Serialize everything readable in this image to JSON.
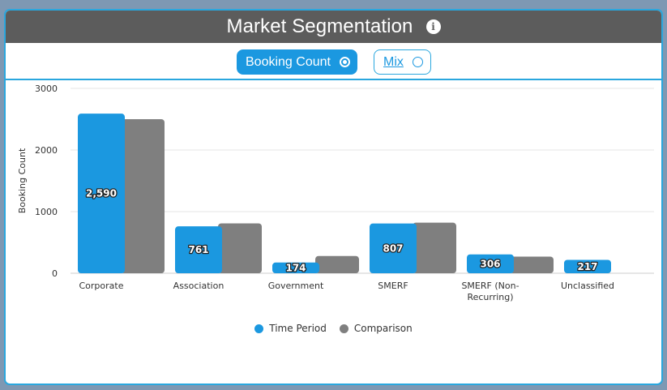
{
  "header": {
    "title": "Market Segmentation",
    "info_icon": "info-icon"
  },
  "toggles": {
    "booking_count": {
      "label": "Booking Count",
      "selected": true
    },
    "mix": {
      "label": "Mix",
      "selected": false
    }
  },
  "colors": {
    "time_period": "#1b98e0",
    "comparison": "#7f7f7f",
    "accent": "#2aa7de",
    "header_bg": "#5c5c5c"
  },
  "chart_data": {
    "type": "bar",
    "ylabel": "Booking Count",
    "xlabel": "",
    "ylim": [
      0,
      3000
    ],
    "yticks": [
      "0",
      "1000",
      "2000",
      "3000"
    ],
    "grid": true,
    "legend_position": "bottom",
    "categories": [
      [
        "Corporate"
      ],
      [
        "Association"
      ],
      [
        "Government"
      ],
      [
        "SMERF"
      ],
      [
        "SMERF (Non-",
        "Recurring)"
      ],
      [
        "Unclassified"
      ]
    ],
    "series": [
      {
        "name": "Time Period",
        "values": [
          2590,
          761,
          174,
          807,
          306,
          217
        ],
        "labels": [
          "2,590",
          "761",
          "174",
          "807",
          "306",
          "217"
        ]
      },
      {
        "name": "Comparison",
        "values": [
          2500,
          810,
          280,
          820,
          270,
          0
        ]
      }
    ]
  }
}
